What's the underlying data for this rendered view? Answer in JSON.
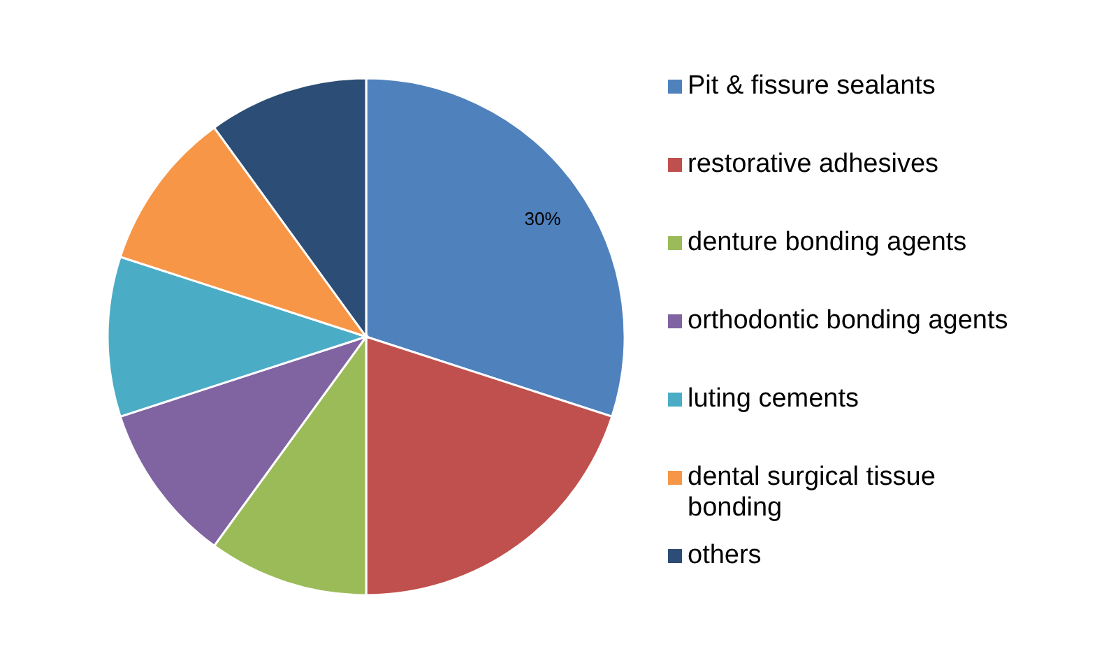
{
  "chart_data": {
    "type": "pie",
    "categories": [
      "Pit & fissure sealants",
      "restorative adhesives",
      "denture bonding agents",
      "orthodontic bonding agents",
      "luting cements",
      "dental surgical tissue bonding",
      "others"
    ],
    "values": [
      30,
      20,
      10,
      10,
      10,
      10,
      10
    ],
    "colors": [
      "#4f81bd",
      "#c0504d",
      "#9bbb59",
      "#8064a2",
      "#4bacc6",
      "#f79646",
      "#2c4d75"
    ],
    "value_labels": [
      "30%",
      null,
      null,
      null,
      null,
      null,
      null
    ],
    "legend": "right"
  }
}
